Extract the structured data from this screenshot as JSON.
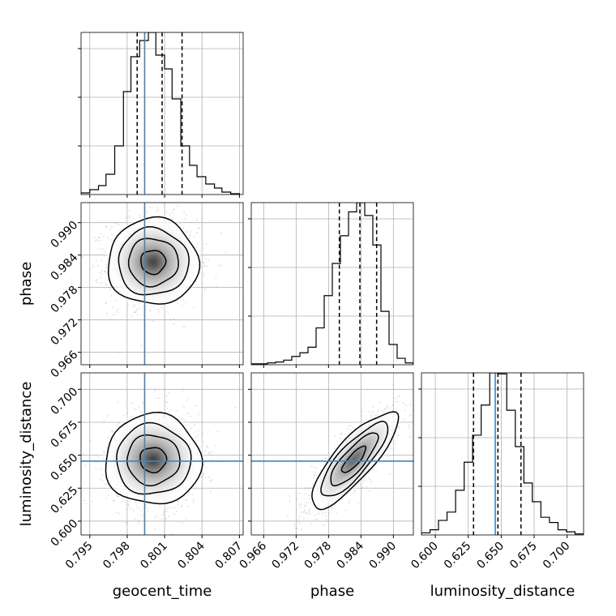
{
  "chart_data": {
    "type": "corner",
    "parameters": [
      "geocent_time",
      "phase",
      "luminosity_distance"
    ],
    "axis_labels": {
      "geocent_time": "geocent_time",
      "phase": "phase",
      "luminosity_distance": "luminosity_distance"
    },
    "ranges": {
      "geocent_time": [
        0.7943,
        0.8073
      ],
      "phase": [
        0.9637,
        0.9937
      ],
      "luminosity_distance": [
        0.5895,
        0.7125
      ]
    },
    "ticks": {
      "geocent_time": [
        {
          "v": 0.795,
          "label": "0.795"
        },
        {
          "v": 0.798,
          "label": "0.798"
        },
        {
          "v": 0.801,
          "label": "0.801"
        },
        {
          "v": 0.804,
          "label": "0.804"
        },
        {
          "v": 0.807,
          "label": "0.807"
        }
      ],
      "phase": [
        {
          "v": 0.966,
          "label": "0.966"
        },
        {
          "v": 0.972,
          "label": "0.972"
        },
        {
          "v": 0.978,
          "label": "0.978"
        },
        {
          "v": 0.984,
          "label": "0.984"
        },
        {
          "v": 0.99,
          "label": "0.990"
        }
      ],
      "luminosity_distance": [
        {
          "v": 0.6,
          "label": "0.600"
        },
        {
          "v": 0.625,
          "label": "0.625"
        },
        {
          "v": 0.65,
          "label": "0.650"
        },
        {
          "v": 0.675,
          "label": "0.675"
        },
        {
          "v": 0.7,
          "label": "0.700"
        }
      ]
    },
    "truths": {
      "geocent_time": 0.7994,
      "luminosity_distance": 0.6455
    },
    "quantiles": {
      "geocent_time": [
        0.7988,
        0.8008,
        0.8024
      ],
      "phase": [
        0.98,
        0.9838,
        0.9869
      ],
      "luminosity_distance": [
        0.629,
        0.6475,
        0.665
      ]
    },
    "histograms": {
      "geocent_time": {
        "bin_edges": [
          0.7943,
          0.795,
          0.7957,
          0.7963,
          0.797,
          0.7977,
          0.7983,
          0.799,
          0.7997,
          0.8003,
          0.801,
          0.8016,
          0.8023,
          0.803,
          0.8036,
          0.8043,
          0.805,
          0.8056,
          0.8063,
          0.807
        ],
        "counts": [
          2,
          6,
          11,
          25,
          60,
          127,
          170,
          190,
          200,
          172,
          155,
          118,
          60,
          36,
          22,
          13,
          8,
          3,
          1
        ]
      },
      "phase": {
        "bin_edges": [
          0.9637,
          0.9652,
          0.9667,
          0.9682,
          0.9697,
          0.9712,
          0.9727,
          0.9742,
          0.9757,
          0.9772,
          0.9787,
          0.9802,
          0.9817,
          0.9832,
          0.9847,
          0.9862,
          0.9877,
          0.9892,
          0.9907,
          0.9922,
          0.9937
        ],
        "counts": [
          1,
          1,
          2,
          3,
          5,
          9,
          13,
          19,
          40,
          75,
          110,
          140,
          166,
          176,
          162,
          130,
          58,
          22,
          7,
          2
        ]
      },
      "luminosity_distance": {
        "bin_edges": [
          0.5895,
          0.596,
          0.6024,
          0.6089,
          0.6154,
          0.6219,
          0.6283,
          0.6348,
          0.6413,
          0.6477,
          0.6542,
          0.6607,
          0.6672,
          0.6736,
          0.6801,
          0.6866,
          0.6931,
          0.6995,
          0.706,
          0.7125
        ],
        "counts": [
          2,
          5,
          14,
          22,
          43,
          70,
          96,
          125,
          156,
          155,
          120,
          85,
          50,
          32,
          17,
          12,
          5,
          3,
          1
        ]
      }
    },
    "contour_levels": [
      0.118,
      0.393,
      0.675,
      0.865
    ],
    "scatter_shown": true,
    "grid": true
  }
}
